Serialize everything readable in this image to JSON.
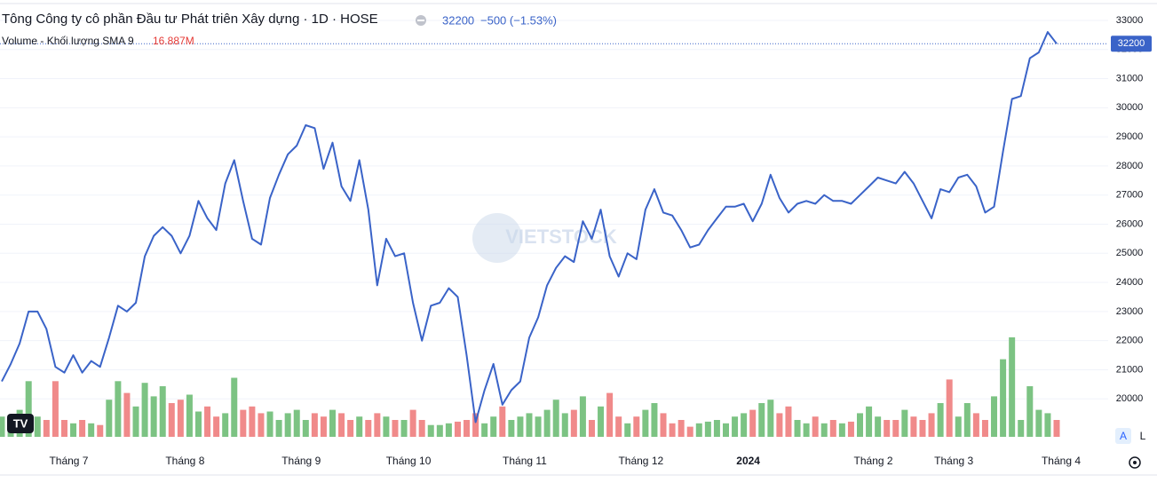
{
  "chart_data": {
    "type": "line",
    "title": "Tông Công ty cô phần Đầu tư Phát triên Xây dựng · 1D · HOSE",
    "quote": {
      "last": "32200",
      "change": "−500 (−1.53%)"
    },
    "watermark": "VIETSTOCK",
    "color": "#3a63c8",
    "categories": [
      null,
      null,
      null,
      null,
      null,
      null,
      null,
      "Tháng 7",
      null,
      null,
      null,
      null,
      null,
      null,
      null,
      null,
      null,
      null,
      null,
      null,
      "Tháng 8",
      null,
      null,
      null,
      null,
      null,
      null,
      null,
      null,
      null,
      null,
      null,
      null,
      "Tháng 9",
      null,
      null,
      null,
      null,
      null,
      null,
      null,
      null,
      null,
      null,
      null,
      "Tháng 10",
      null,
      null,
      null,
      null,
      null,
      null,
      null,
      null,
      null,
      null,
      null,
      null,
      "Tháng 11",
      null,
      null,
      null,
      null,
      null,
      null,
      null,
      null,
      null,
      null,
      null,
      null,
      "Tháng 12",
      null,
      null,
      null,
      null,
      null,
      null,
      null,
      null,
      null,
      null,
      null,
      "2024",
      null,
      null,
      null,
      null,
      null,
      null,
      null,
      null,
      null,
      null,
      null,
      null,
      null,
      "Tháng 2",
      null,
      null,
      null,
      null,
      null,
      null,
      null,
      null,
      "Tháng 3",
      null,
      null,
      null,
      null,
      null,
      null,
      null,
      null,
      null,
      null,
      null,
      "Tháng 4"
    ],
    "values": [
      20600,
      21200,
      21900,
      23000,
      23000,
      22400,
      21100,
      20900,
      21500,
      20900,
      21300,
      21100,
      22100,
      23200,
      23000,
      23300,
      24900,
      25600,
      25900,
      25600,
      25000,
      25600,
      26800,
      26200,
      25800,
      27400,
      28200,
      26800,
      25500,
      25300,
      26900,
      27700,
      28400,
      28700,
      29400,
      29300,
      27900,
      28800,
      27300,
      26800,
      28200,
      26500,
      23900,
      25500,
      24900,
      25000,
      23300,
      22000,
      23200,
      23300,
      23800,
      23500,
      21500,
      19200,
      20300,
      21200,
      19800,
      20300,
      20600,
      22100,
      22800,
      23900,
      24500,
      24900,
      24700,
      26100,
      25500,
      26500,
      24900,
      24200,
      25000,
      24800,
      26500,
      27200,
      26400,
      26300,
      25800,
      25200,
      25300,
      25800,
      26200,
      26600,
      26600,
      26700,
      26100,
      26700,
      27700,
      26900,
      26400,
      26700,
      26800,
      26700,
      27000,
      26800,
      26800,
      26700,
      27000,
      27300,
      27600,
      27500,
      27400,
      27800,
      27400,
      26800,
      26200,
      27200,
      27100,
      27600,
      27700,
      27300,
      26400,
      26600,
      28500,
      30300,
      30400,
      31700,
      31900,
      32600,
      32200
    ],
    "ylim": [
      18300,
      33700
    ],
    "yticks": [
      20000,
      21000,
      22000,
      23000,
      24000,
      25000,
      26000,
      27000,
      28000,
      29000,
      30000,
      31000,
      32000,
      33000
    ],
    "grid": true,
    "volume": {
      "label": "Volume - Khối lượng SMA 9",
      "sma": "16.887M",
      "up_color": "#7cc383",
      "down_color": "#f08a8a",
      "ylim": [
        0,
        100
      ],
      "values": [
        12,
        10,
        16,
        33,
        12,
        10,
        33,
        10,
        8,
        10,
        8,
        7,
        22,
        33,
        26,
        18,
        32,
        24,
        30,
        20,
        22,
        25,
        15,
        18,
        12,
        14,
        35,
        16,
        18,
        14,
        15,
        10,
        14,
        16,
        10,
        14,
        12,
        16,
        14,
        10,
        12,
        10,
        14,
        12,
        10,
        10,
        16,
        10,
        7,
        7,
        8,
        9,
        10,
        14,
        8,
        12,
        18,
        10,
        12,
        14,
        12,
        16,
        22,
        14,
        16,
        24,
        10,
        18,
        26,
        12,
        8,
        12,
        16,
        20,
        14,
        8,
        10,
        6,
        8,
        9,
        10,
        8,
        12,
        14,
        16,
        20,
        22,
        14,
        18,
        10,
        8,
        12,
        8,
        10,
        8,
        9,
        14,
        18,
        12,
        10,
        10,
        16,
        12,
        10,
        14,
        20,
        34,
        12,
        20,
        14,
        10,
        24,
        46,
        59,
        10,
        30,
        16,
        14,
        10
      ]
    }
  }
}
